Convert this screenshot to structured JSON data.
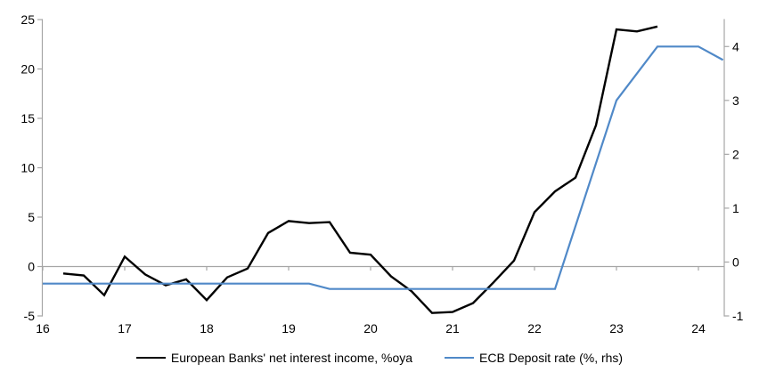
{
  "chart_data": {
    "type": "line",
    "title": "",
    "xlabel": "",
    "ylabel_left": "",
    "ylabel_right": "",
    "x_axis": {
      "tick_labels": [
        "16",
        "17",
        "18",
        "19",
        "20",
        "21",
        "22",
        "23",
        "24"
      ],
      "tick_values": [
        16,
        17,
        18,
        19,
        20,
        21,
        22,
        23,
        24
      ],
      "min": 16,
      "max": 24.32
    },
    "left_axis": {
      "tick_labels": [
        "-5",
        "0",
        "5",
        "10",
        "15",
        "20",
        "25"
      ],
      "tick_values": [
        -5,
        0,
        5,
        10,
        15,
        20,
        25
      ],
      "min": -5,
      "max": 25
    },
    "right_axis": {
      "tick_labels": [
        "-1",
        "0",
        "1",
        "2",
        "3",
        "4"
      ],
      "tick_values": [
        -1,
        0,
        1,
        2,
        3,
        4
      ],
      "min": -1,
      "max": 4.5
    },
    "grid": "zero-line-only",
    "legend_position": "bottom-center",
    "series": [
      {
        "name": "European Banks' net interest income, %oya",
        "axis": "left",
        "color": "#000000",
        "x": [
          16.25,
          16.5,
          16.75,
          17.0,
          17.25,
          17.5,
          17.75,
          18.0,
          18.25,
          18.5,
          18.75,
          19.0,
          19.25,
          19.5,
          19.75,
          20.0,
          20.25,
          20.5,
          20.75,
          21.0,
          21.25,
          21.5,
          21.75,
          22.0,
          22.25,
          22.5,
          22.75,
          23.0,
          23.25,
          23.5
        ],
        "values": [
          -0.7,
          -0.9,
          -2.9,
          1.0,
          -0.8,
          -1.9,
          -1.3,
          -3.4,
          -1.1,
          -0.2,
          3.4,
          4.6,
          4.4,
          4.5,
          1.4,
          1.2,
          -1.0,
          -2.5,
          -4.7,
          -4.6,
          -3.7,
          -1.6,
          0.6,
          5.5,
          7.6,
          9.0,
          14.3,
          24.0,
          23.8,
          24.3
        ]
      },
      {
        "name": "ECB Deposit rate (%, rhs)",
        "axis": "right",
        "color": "#5089c8",
        "x": [
          16.0,
          19.25,
          19.5,
          22.25,
          23.0,
          23.5,
          24.0,
          24.3
        ],
        "values": [
          -0.4,
          -0.4,
          -0.5,
          -0.5,
          3.0,
          4.0,
          4.0,
          3.75
        ]
      }
    ]
  },
  "legend": {
    "items": [
      {
        "label": "European Banks' net interest income, %oya",
        "color": "#000000"
      },
      {
        "label": "ECB Deposit rate (%, rhs)",
        "color": "#5089c8"
      }
    ]
  },
  "colors": {
    "background": "#ffffff",
    "axis": "#a6a6a6",
    "text": "#000000",
    "nii_line": "#000000",
    "ecb_line": "#5089c8"
  }
}
